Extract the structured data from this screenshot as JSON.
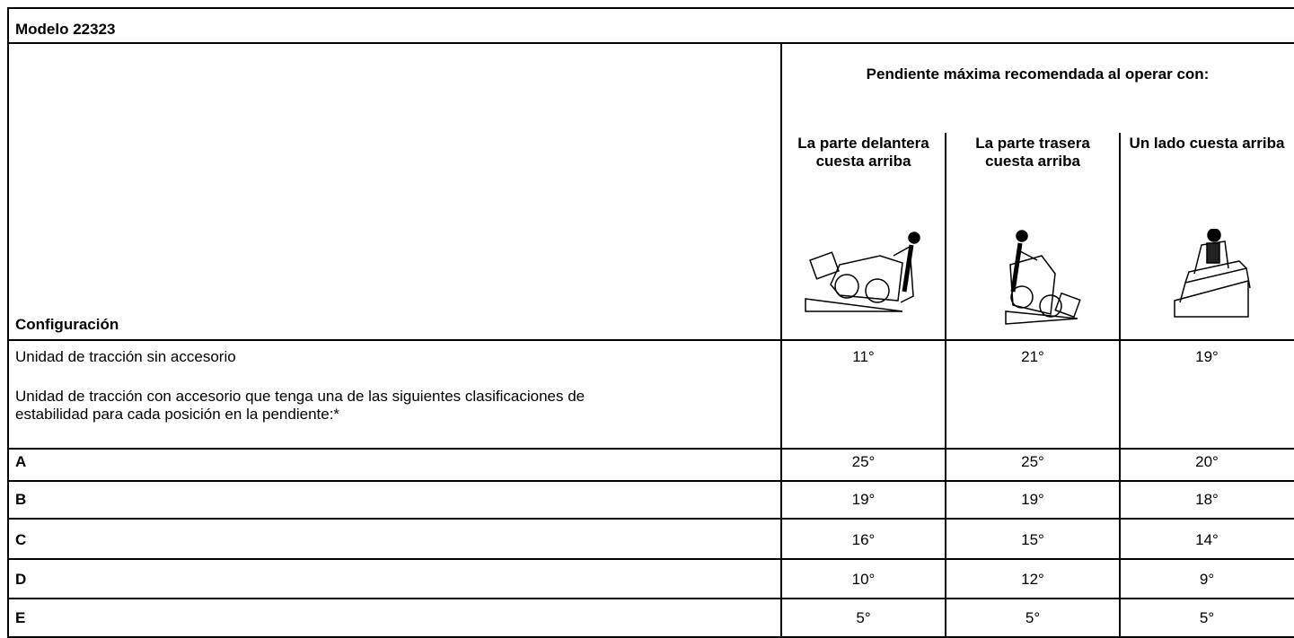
{
  "title": "Modelo 22323",
  "header": {
    "group": "Pendiente máxima recomendada al operar con:",
    "columns": [
      "La parte delantera cuesta arriba",
      "La parte trasera cuesta arriba",
      "Un lado cuesta arriba"
    ],
    "config": "Configuración"
  },
  "rows": [
    {
      "label": "Unidad de tracción sin accesorio",
      "values": [
        "11°",
        "21°",
        "19°"
      ]
    },
    {
      "label": "Unidad de tracción con accesorio que tenga una de las siguientes clasificaciones de estabilidad para cada posición en la pendiente:*",
      "values": []
    },
    {
      "label": "A",
      "values": [
        "25°",
        "25°",
        "20°"
      ]
    },
    {
      "label": "B",
      "values": [
        "19°",
        "19°",
        "18°"
      ]
    },
    {
      "label": "C",
      "values": [
        "16°",
        "15°",
        "14°"
      ]
    },
    {
      "label": "D",
      "values": [
        "10°",
        "12°",
        "9°"
      ]
    },
    {
      "label": "E",
      "values": [
        "5°",
        "5°",
        "5°"
      ]
    }
  ]
}
